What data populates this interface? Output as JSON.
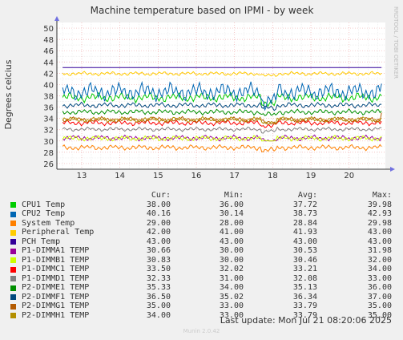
{
  "chart_data": {
    "type": "line",
    "title": "Machine temperature based on IPMI - by week",
    "ylabel": "Degrees celcius",
    "ylim": [
      25,
      51
    ],
    "yticks": [
      26,
      28,
      30,
      32,
      34,
      36,
      38,
      40,
      42,
      44,
      46,
      48,
      50
    ],
    "xlim": [
      12.35,
      20.95
    ],
    "xticks": [
      13,
      14,
      15,
      16,
      17,
      18,
      19,
      20
    ],
    "grid": true,
    "legend_position": "bottom",
    "columns": [
      "Cur:",
      "Min:",
      "Avg:",
      "Max:"
    ],
    "series": [
      {
        "name": "CPU1 Temp",
        "color": "#00cc00",
        "cur": "38.00",
        "min": "36.00",
        "avg": "37.72",
        "max": "39.98",
        "noise": 0.7
      },
      {
        "name": "CPU2 Temp",
        "color": "#0066b3",
        "cur": "40.16",
        "min": "30.14",
        "avg": "38.73",
        "max": "42.93",
        "noise": 1.3
      },
      {
        "name": "System Temp",
        "color": "#ff8000",
        "cur": "29.00",
        "min": "28.00",
        "avg": "28.84",
        "max": "29.98",
        "noise": 0.4
      },
      {
        "name": "Peripheral Temp",
        "color": "#ffcc00",
        "cur": "42.00",
        "min": "41.00",
        "avg": "41.93",
        "max": "43.00",
        "noise": 0.3
      },
      {
        "name": "PCH Temp",
        "color": "#330099",
        "cur": "43.00",
        "min": "43.00",
        "avg": "43.00",
        "max": "43.00",
        "noise": 0
      },
      {
        "name": "P1-DIMMA1 TEMP",
        "color": "#990099",
        "cur": "30.66",
        "min": "30.00",
        "avg": "30.53",
        "max": "31.98",
        "noise": 0.4
      },
      {
        "name": "P1-DIMMB1 TEMP",
        "color": "#ccff00",
        "cur": "30.83",
        "min": "30.00",
        "avg": "30.46",
        "max": "32.00",
        "noise": 0.4
      },
      {
        "name": "P1-DIMMC1 TEMP",
        "color": "#ff0000",
        "cur": "33.50",
        "min": "32.02",
        "avg": "33.21",
        "max": "34.00",
        "noise": 0.4
      },
      {
        "name": "P1-DIMMD1 TEMP",
        "color": "#808080",
        "cur": "32.33",
        "min": "31.00",
        "avg": "32.08",
        "max": "33.00",
        "noise": 0.3
      },
      {
        "name": "P2-DIMME1 TEMP",
        "color": "#008f00",
        "cur": "35.33",
        "min": "34.00",
        "avg": "35.13",
        "max": "36.00",
        "noise": 0.4
      },
      {
        "name": "P2-DIMMF1 TEMP",
        "color": "#00487d",
        "cur": "36.50",
        "min": "35.02",
        "avg": "36.34",
        "max": "37.00",
        "noise": 0.4
      },
      {
        "name": "P2-DIMMG1 TEMP",
        "color": "#b35a00",
        "cur": "35.00",
        "min": "33.00",
        "avg": "33.79",
        "max": "35.00",
        "noise": 0.4
      },
      {
        "name": "P2-DIMMH1 TEMP",
        "color": "#b38f00",
        "cur": "34.00",
        "min": "33.00",
        "avg": "33.79",
        "max": "35.00",
        "noise": 0.4
      }
    ]
  },
  "side_label": "RRDTOOL / TOBI OETIKER",
  "footer": {
    "last_update": "Last update: Mon Jul 21 08:20:06 2025",
    "version": "Munin 2.0.42"
  }
}
